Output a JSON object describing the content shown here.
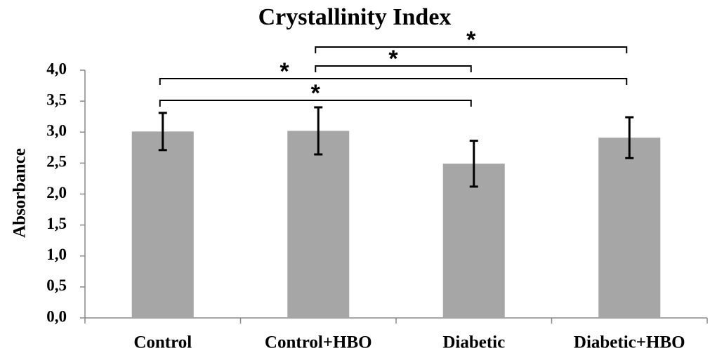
{
  "chart_data": {
    "type": "bar",
    "title": "Crystallinity Index",
    "y_label": "Absorbance",
    "categories": [
      "Control",
      "Control+HBO",
      "Diabetic",
      "Diabetic+HBO"
    ],
    "values": [
      3.01,
      3.02,
      2.49,
      2.91
    ],
    "errors": [
      0.3,
      0.38,
      0.37,
      0.33
    ],
    "color": "#a6a6a6",
    "ylim": [
      0,
      4
    ],
    "yticks": [
      {
        "value": 0,
        "label": "0,0"
      },
      {
        "value": 0.5,
        "label": "0,5"
      },
      {
        "value": 1,
        "label": "1,0"
      },
      {
        "value": 1.5,
        "label": "1,5"
      },
      {
        "value": 2,
        "label": "2,0"
      },
      {
        "value": 2.5,
        "label": "2,5"
      },
      {
        "value": 3,
        "label": "3,0"
      },
      {
        "value": 3.5,
        "label": "3,5"
      },
      {
        "value": 4,
        "label": "4,0"
      }
    ],
    "annotations": [
      {
        "from": "Control+HBO",
        "to": "Diabetic+HBO",
        "label": "*"
      },
      {
        "from": "Control+HBO",
        "to": "Diabetic",
        "label": "*"
      },
      {
        "from": "Control",
        "to": "Diabetic+HBO",
        "label": "*"
      },
      {
        "from": "Control",
        "to": "Diabetic",
        "label": "*"
      }
    ]
  }
}
